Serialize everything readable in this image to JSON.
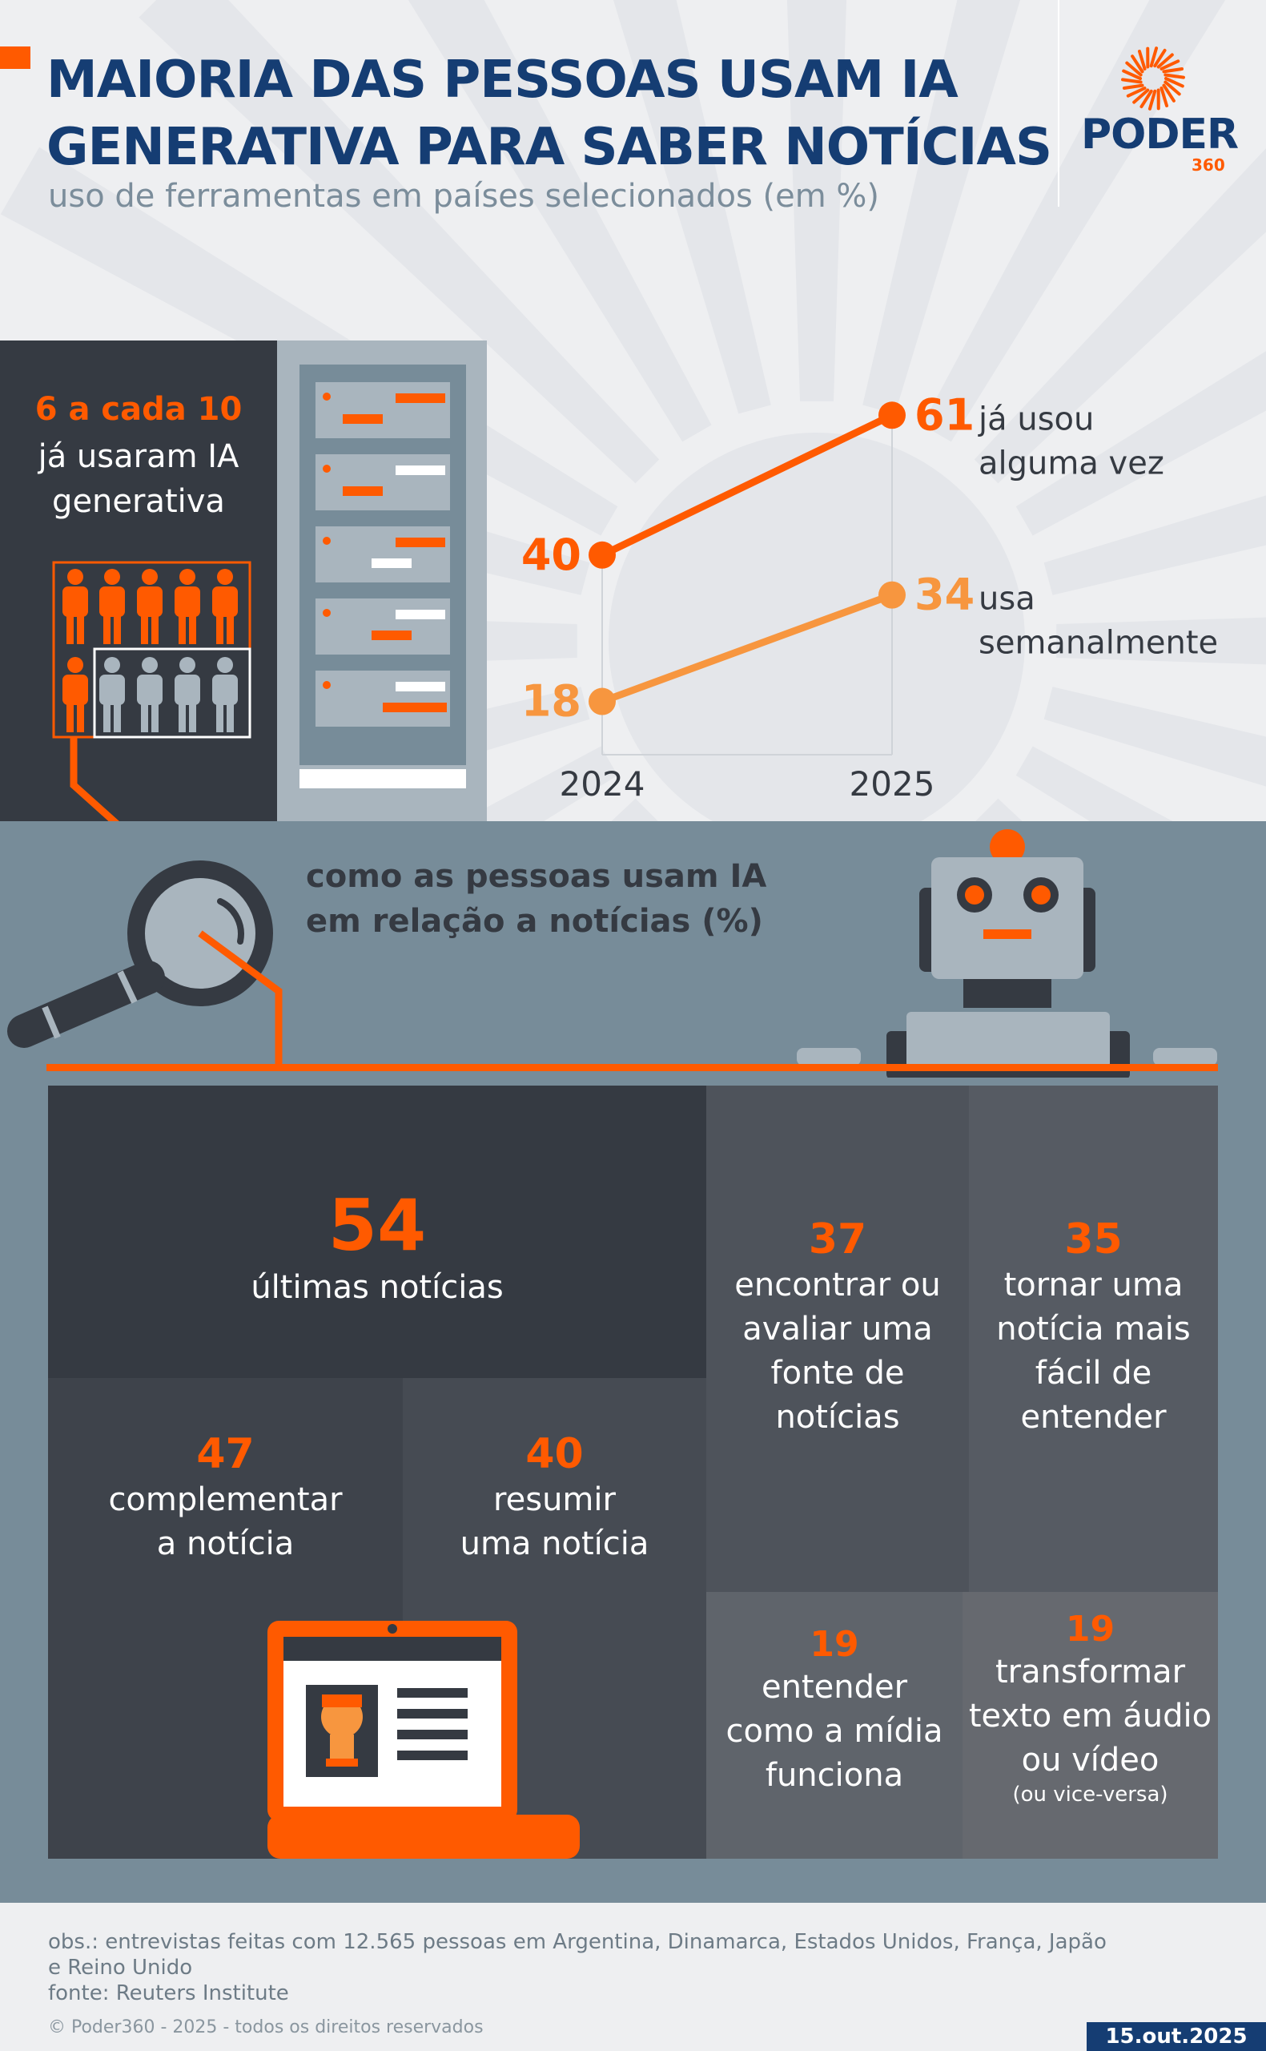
{
  "header": {
    "title_line1": "MAIORIA DAS PESSOAS USAM IA",
    "title_line2": "GENERATIVA PARA SABER NOTÍCIAS",
    "subtitle": "uso de ferramentas em países selecionados (em %)",
    "brand": "PODER",
    "brand_sub": "360"
  },
  "stat": {
    "highlight": "6 a cada 10",
    "line1": "já usaram IA",
    "line2": "generativa"
  },
  "chart_data": [
    {
      "type": "line",
      "x": [
        "2024",
        "2025"
      ],
      "series": [
        {
          "name": "já usou alguma vez",
          "values": [
            40,
            61
          ],
          "color": "#ff5a00"
        },
        {
          "name": "usa semanalmente",
          "values": [
            18,
            34
          ],
          "color": "#f7963f"
        }
      ],
      "series_label_lines": [
        [
          "já usou",
          "alguma vez"
        ],
        [
          "usa",
          "semanalmente"
        ]
      ],
      "title": "",
      "xlabel": "",
      "ylabel": "",
      "grid": false
    },
    {
      "type": "table",
      "title": "como as pessoas usam IA em relação a notícias (%)",
      "title_lines": [
        "como as pessoas usam IA",
        "em relação a notícias (%)"
      ],
      "categories": [
        "últimas notícias",
        "complementar a notícia",
        "resumir uma notícia",
        "encontrar ou avaliar uma fonte de notícias",
        "tornar uma notícia mais fácil de entender",
        "entender como a mídia funciona",
        "transformar texto em áudio ou vídeo"
      ],
      "values": [
        54,
        47,
        40,
        37,
        35,
        19,
        19
      ]
    }
  ],
  "tiles": [
    {
      "value": "54",
      "lines": [
        "últimas notícias"
      ]
    },
    {
      "value": "47",
      "lines": [
        "complementar",
        "a notícia"
      ]
    },
    {
      "value": "40",
      "lines": [
        "resumir",
        "uma notícia"
      ]
    },
    {
      "value": "37",
      "lines": [
        "encontrar ou",
        "avaliar uma",
        "fonte de",
        "notícias"
      ]
    },
    {
      "value": "35",
      "lines": [
        "tornar uma",
        "notícia mais",
        "fácil de",
        "entender"
      ]
    },
    {
      "value": "19",
      "lines": [
        "entender",
        "como a mídia",
        "funciona"
      ]
    },
    {
      "value": "19",
      "lines": [
        "transformar",
        "texto em áudio",
        "ou vídeo"
      ],
      "note": "(ou vice-versa)"
    }
  ],
  "footer": {
    "obs_line1": "obs.: entrevistas feitas com 12.565 pessoas em Argentina, Dinamarca, Estados Unidos, França, Japão",
    "obs_line2": "e Reino Unido",
    "source": "fonte: Reuters Institute",
    "copyright": "© Poder360 - 2025 - todos os direitos reservados",
    "date": "15.out.2025"
  },
  "colors": {
    "navy": "#153d73",
    "orange": "#ff5a00",
    "light_orange": "#f7963f",
    "dark": "#353a42",
    "gray_blue": "#778c99"
  },
  "icons": [
    "poder360-sun-logo-icon",
    "people-icon-grid",
    "server-rack-icon",
    "magnifying-glass-icon",
    "robot-icon",
    "laptop-news-icon"
  ]
}
